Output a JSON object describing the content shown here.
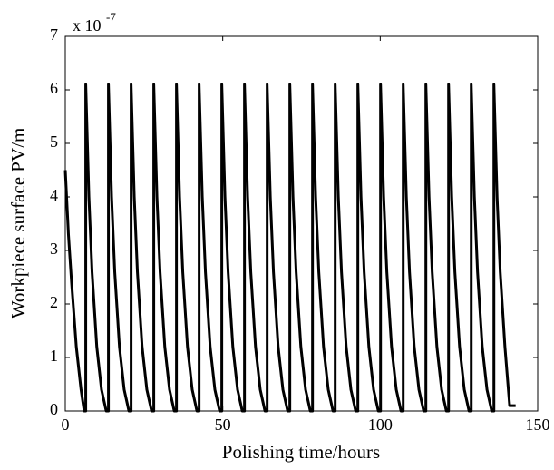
{
  "chart_data": {
    "type": "line",
    "xlabel": "Polishing time/hours",
    "ylabel": "Workpiece surface PV/m",
    "multiplier": "x 10",
    "exponent": "-7",
    "xlim": [
      0,
      150
    ],
    "xticks": [
      0,
      50,
      100,
      150
    ],
    "ylim": [
      0,
      7
    ],
    "yticks": [
      0,
      1,
      2,
      3,
      4,
      5,
      6,
      7
    ],
    "series": [
      {
        "color": "#000000",
        "x": [
          0,
          1,
          2,
          3.5,
          5,
          6,
          6.5,
          6.5,
          7.5,
          8.5,
          10,
          11.5,
          13,
          13.7,
          13.7,
          14.7,
          15.7,
          17.2,
          18.7,
          20.2,
          20.9,
          20.9,
          21.9,
          22.9,
          24.4,
          25.9,
          27.4,
          28.1,
          28.1,
          29.1,
          30.1,
          31.6,
          33.1,
          34.6,
          35.3,
          35.3,
          36.3,
          37.3,
          38.8,
          40.3,
          41.8,
          42.5,
          42.5,
          43.5,
          44.5,
          46,
          47.5,
          49,
          49.7,
          49.7,
          50.7,
          51.7,
          53.2,
          54.7,
          56.2,
          56.9,
          56.9,
          57.9,
          58.9,
          60.4,
          61.9,
          63.4,
          64.1,
          64.1,
          65.1,
          66.1,
          67.6,
          69.1,
          70.6,
          71.3,
          71.3,
          72.3,
          73.3,
          74.8,
          76.3,
          77.8,
          78.5,
          78.5,
          79.5,
          80.5,
          82,
          83.5,
          85,
          85.7,
          85.7,
          86.7,
          87.7,
          89.2,
          90.7,
          92.2,
          92.9,
          92.9,
          93.9,
          94.9,
          96.4,
          97.9,
          99.4,
          100.1,
          100.1,
          101.1,
          102.1,
          103.6,
          105.1,
          106.6,
          107.3,
          107.3,
          108.3,
          109.3,
          110.8,
          112.3,
          113.8,
          114.5,
          114.5,
          115.5,
          116.5,
          118,
          119.5,
          121,
          121.7,
          121.7,
          122.7,
          123.7,
          125.2,
          126.7,
          128.2,
          128.9,
          128.9,
          129.9,
          130.9,
          132.4,
          133.9,
          135.4,
          136.1,
          136.1,
          137.1,
          138.1,
          139.6,
          141.1,
          143
        ],
        "values": [
          4.5,
          3.3,
          2.4,
          1.2,
          0.4,
          0,
          0,
          6.1,
          4,
          2.6,
          1.2,
          0.4,
          0,
          0,
          6.1,
          4,
          2.6,
          1.2,
          0.4,
          0,
          0,
          6.1,
          4,
          2.6,
          1.2,
          0.4,
          0,
          0,
          6.1,
          4,
          2.6,
          1.2,
          0.4,
          0,
          0,
          6.1,
          4,
          2.6,
          1.2,
          0.4,
          0,
          0,
          6.1,
          4,
          2.6,
          1.2,
          0.4,
          0,
          0,
          6.1,
          4,
          2.6,
          1.2,
          0.4,
          0,
          0,
          6.1,
          4,
          2.6,
          1.2,
          0.4,
          0,
          0,
          6.1,
          4,
          2.6,
          1.2,
          0.4,
          0,
          0,
          6.1,
          4,
          2.6,
          1.2,
          0.4,
          0,
          0,
          6.1,
          4,
          2.6,
          1.2,
          0.4,
          0,
          0,
          6.1,
          4,
          2.6,
          1.2,
          0.4,
          0,
          0,
          6.1,
          4,
          2.6,
          1.2,
          0.4,
          0,
          0,
          6.1,
          4,
          2.6,
          1.2,
          0.4,
          0,
          0,
          6.1,
          4,
          2.6,
          1.2,
          0.4,
          0,
          0,
          6.1,
          4,
          2.6,
          1.2,
          0.4,
          0,
          0,
          6.1,
          4,
          2.6,
          1.2,
          0.4,
          0,
          0,
          6.1,
          4,
          2.6,
          1.2,
          0.4,
          0,
          0,
          6.1,
          4,
          2.6,
          1.2,
          0.1,
          0.1
        ]
      }
    ]
  }
}
